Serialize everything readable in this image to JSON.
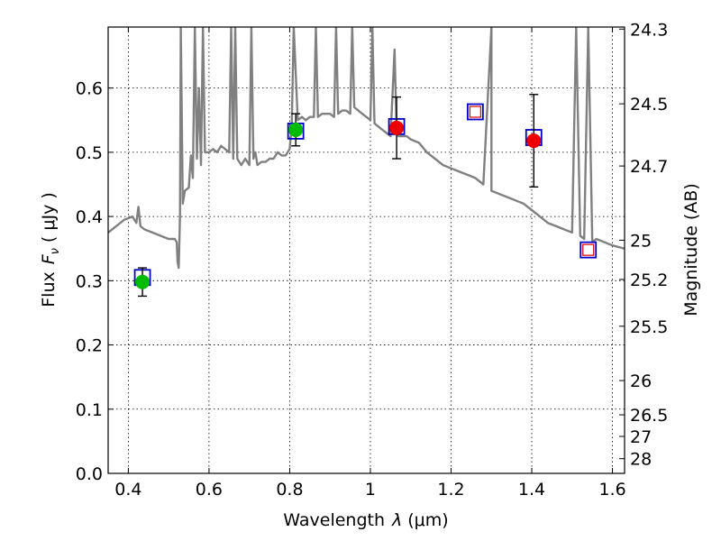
{
  "chart_data": {
    "type": "scatter",
    "xlabel_text": "Wavelength",
    "xlabel_symbol": "λ",
    "xlabel_unit": "(μm)",
    "ylabel_text": "Flux",
    "ylabel_symbol": "F",
    "ylabel_subscript": "ν",
    "ylabel_unit": "( μJy )",
    "y2label": "Magnitude (AB)",
    "xlim": [
      0.35,
      1.63
    ],
    "ylim": [
      0.0,
      0.695
    ],
    "grid": true,
    "x_ticks": [
      0.4,
      0.6,
      0.8,
      1.0,
      1.2,
      1.4,
      1.6
    ],
    "x_tick_labels": [
      "0.4",
      "0.6",
      "0.8",
      "1",
      "1.2",
      "1.4",
      "1.6"
    ],
    "y_ticks": [
      0.0,
      0.1,
      0.2,
      0.3,
      0.4,
      0.5,
      0.6
    ],
    "y_tick_labels": [
      "0.0",
      "0.1",
      "0.2",
      "0.3",
      "0.4",
      "0.5",
      "0.6"
    ],
    "y2_ticks": [
      {
        "mag": 24.3,
        "label": "24.3"
      },
      {
        "mag": 24.5,
        "label": "24.5"
      },
      {
        "mag": 24.7,
        "label": "24.7"
      },
      {
        "mag": 25.0,
        "label": "25"
      },
      {
        "mag": 25.2,
        "label": "25.2"
      },
      {
        "mag": 25.5,
        "label": "25.5"
      },
      {
        "mag": 26.0,
        "label": "26"
      },
      {
        "mag": 26.5,
        "label": "26.5"
      },
      {
        "mag": 27.0,
        "label": "27"
      },
      {
        "mag": 28.0,
        "label": "28"
      }
    ],
    "template_spectrum": {
      "color": "#808080",
      "x": [
        0.35,
        0.37,
        0.39,
        0.41,
        0.42,
        0.425,
        0.43,
        0.44,
        0.46,
        0.48,
        0.5,
        0.515,
        0.52,
        0.522,
        0.525,
        0.528,
        0.53,
        0.535,
        0.54,
        0.55,
        0.555,
        0.56,
        0.565,
        0.57,
        0.575,
        0.58,
        0.585,
        0.59,
        0.6,
        0.61,
        0.62,
        0.63,
        0.64,
        0.65,
        0.655,
        0.66,
        0.665,
        0.67,
        0.68,
        0.69,
        0.7,
        0.705,
        0.71,
        0.715,
        0.72,
        0.73,
        0.74,
        0.75,
        0.76,
        0.77,
        0.78,
        0.79,
        0.8,
        0.805,
        0.81,
        0.82,
        0.83,
        0.84,
        0.85,
        0.86,
        0.865,
        0.87,
        0.88,
        0.9,
        0.91,
        0.915,
        0.92,
        0.93,
        0.94,
        0.95,
        0.955,
        0.96,
        0.97,
        0.98,
        0.99,
        1.0,
        1.005,
        1.01,
        1.02,
        1.03,
        1.04,
        1.05,
        1.06,
        1.065,
        1.07,
        1.08,
        1.09,
        1.1,
        1.12,
        1.14,
        1.16,
        1.18,
        1.2,
        1.22,
        1.24,
        1.26,
        1.28,
        1.3,
        1.3,
        1.32,
        1.34,
        1.36,
        1.38,
        1.4,
        1.42,
        1.44,
        1.46,
        1.48,
        1.5,
        1.51,
        1.52,
        1.53,
        1.54,
        1.55,
        1.56,
        1.58,
        1.6,
        1.63
      ],
      "y": [
        0.375,
        0.385,
        0.395,
        0.4,
        0.39,
        0.415,
        0.385,
        0.38,
        0.375,
        0.37,
        0.365,
        0.365,
        0.36,
        0.33,
        0.32,
        0.4,
        0.695,
        0.42,
        0.44,
        0.445,
        0.495,
        0.46,
        0.695,
        0.49,
        0.6,
        0.48,
        0.695,
        0.5,
        0.5,
        0.505,
        0.5,
        0.51,
        0.505,
        0.5,
        0.695,
        0.49,
        0.695,
        0.49,
        0.48,
        0.49,
        0.48,
        0.695,
        0.49,
        0.5,
        0.48,
        0.485,
        0.485,
        0.49,
        0.49,
        0.5,
        0.495,
        0.495,
        0.505,
        0.54,
        0.695,
        0.55,
        0.555,
        0.55,
        0.555,
        0.555,
        0.695,
        0.555,
        0.56,
        0.56,
        0.555,
        0.695,
        0.56,
        0.565,
        0.565,
        0.56,
        0.695,
        0.57,
        0.565,
        0.56,
        0.555,
        0.55,
        0.695,
        0.545,
        0.54,
        0.535,
        0.53,
        0.525,
        0.66,
        0.53,
        0.525,
        0.525,
        0.525,
        0.52,
        0.515,
        0.5,
        0.49,
        0.48,
        0.475,
        0.47,
        0.465,
        0.46,
        0.45,
        0.695,
        0.44,
        0.435,
        0.43,
        0.425,
        0.42,
        0.41,
        0.4,
        0.39,
        0.385,
        0.38,
        0.375,
        0.695,
        0.37,
        0.365,
        0.695,
        0.36,
        0.365,
        0.36,
        0.355,
        0.35
      ]
    },
    "series": [
      {
        "kind": "observed",
        "color": "#00bb00",
        "x": [
          0.435,
          0.815
        ],
        "y": [
          0.298,
          0.535
        ],
        "yerr": [
          0.022,
          0.025
        ]
      },
      {
        "kind": "observed",
        "color": "#ee0000",
        "x": [
          1.065,
          1.405
        ],
        "y": [
          0.538,
          0.518
        ],
        "yerr": [
          0.048,
          0.072
        ]
      },
      {
        "kind": "model",
        "edgecolor": "#0000cc",
        "x": [
          0.435,
          0.815,
          1.065,
          1.405
        ],
        "y": [
          0.305,
          0.533,
          0.54,
          0.523
        ]
      },
      {
        "kind": "model-open",
        "outer_edgecolor": "#0000cc",
        "inner_edgecolor": "#dd0000",
        "x": [
          1.26,
          1.54
        ],
        "y": [
          0.563,
          0.348
        ]
      }
    ]
  }
}
